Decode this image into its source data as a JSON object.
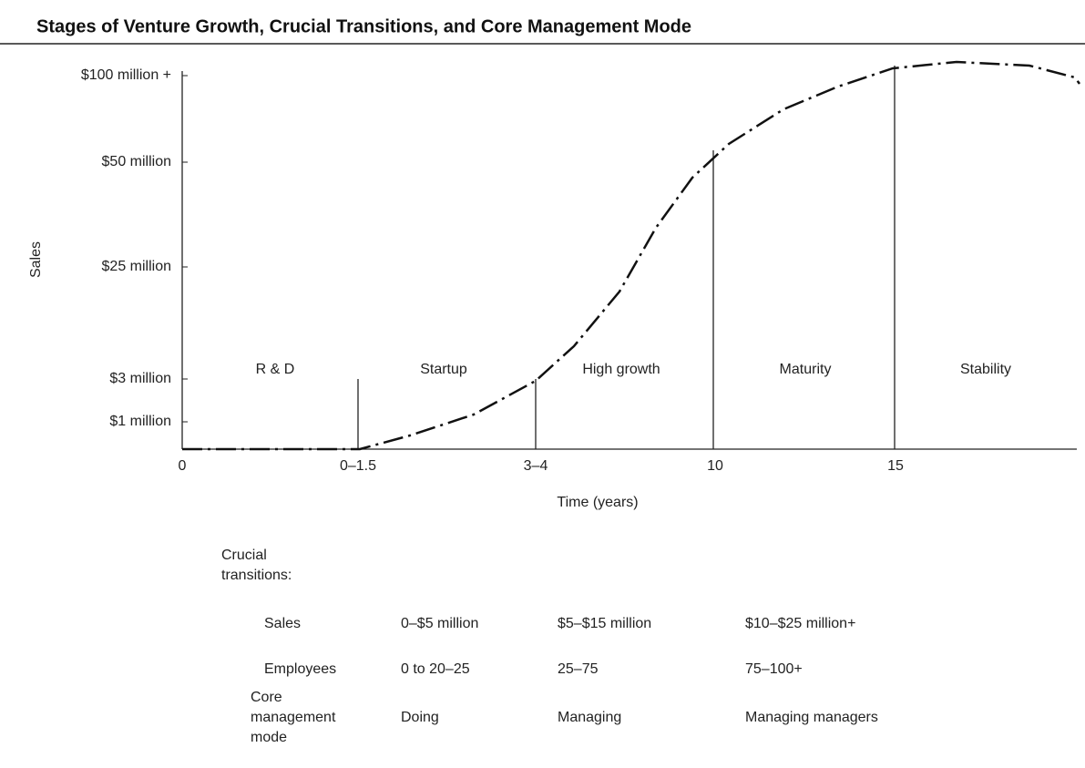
{
  "title": "Stages of Venture Growth, Crucial Transitions, and Core Management Mode",
  "y_axis": {
    "label": "Sales",
    "ticks": [
      "$100 million +",
      "$50 million",
      "$25 million",
      "$3 million",
      "$1 million"
    ]
  },
  "x_axis": {
    "label": "Time (years)",
    "ticks": [
      "0",
      "0–1.5",
      "3–4",
      "10",
      "15"
    ]
  },
  "stages": [
    "R & D",
    "Startup",
    "High growth",
    "Maturity",
    "Stability"
  ],
  "table": {
    "heading": [
      "Crucial",
      "transitions:"
    ],
    "rows": [
      {
        "label": [
          "Sales"
        ],
        "cells": [
          "0–$5 million",
          "$5–$15 million",
          "$10–$25 million+"
        ]
      },
      {
        "label": [
          "Employees"
        ],
        "cells": [
          "0 to 20–25",
          "25–75",
          "75–100+"
        ]
      },
      {
        "label": [
          "Core",
          "management",
          "mode"
        ],
        "cells": [
          "Doing",
          "Managing",
          "Managing managers"
        ]
      }
    ]
  }
}
